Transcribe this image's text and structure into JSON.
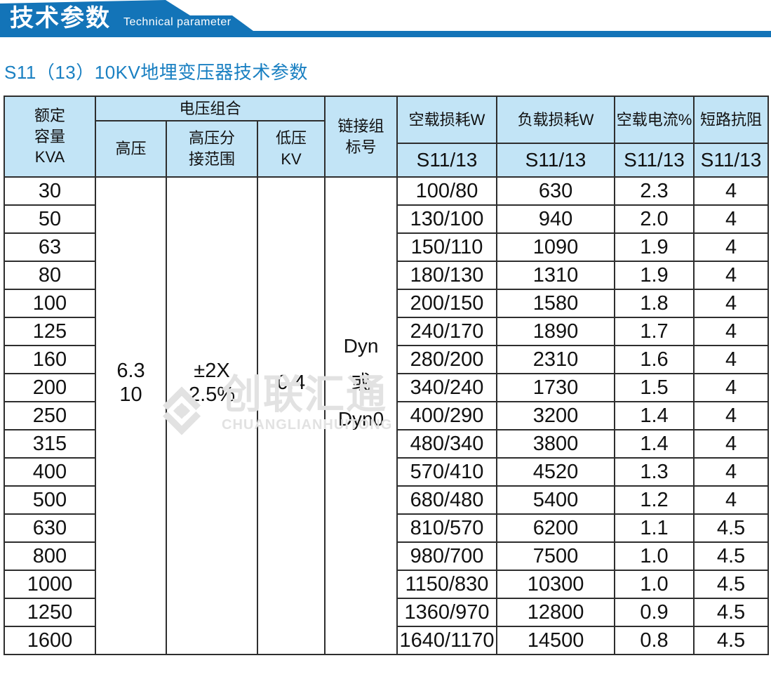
{
  "banner": {
    "title": "技术参数",
    "subtitle_en": "Technical parameter",
    "color": "#1374b8"
  },
  "page_title": "S11（13）10KV地埋变压器技术参数",
  "watermark": {
    "cn": "创联汇通",
    "en": "CHUANGLIANHUITONG"
  },
  "table": {
    "header": {
      "capacity": "额定\n容量\nKVA",
      "voltage_group": "电压组合",
      "hv": "高压",
      "tap": "高压分\n接范围",
      "lv": "低压\nKV",
      "vector": "链接组\n标号",
      "noload_loss": "空载损耗W",
      "load_loss": "负载损耗W",
      "noload_current": "空载电流%",
      "impedance": "短路抗阻",
      "sub_label": "S11/13"
    },
    "merged": {
      "hv": "6.3\n10",
      "tap": "±2X\n2.5%",
      "lv": "0.4",
      "vector": "Dyn\n或\nDyn0"
    },
    "rows": [
      {
        "kva": "30",
        "noload": "100/80",
        "load": "630",
        "current": "2.3",
        "impedance": "4"
      },
      {
        "kva": "50",
        "noload": "130/100",
        "load": "940",
        "current": "2.0",
        "impedance": "4"
      },
      {
        "kva": "63",
        "noload": "150/110",
        "load": "1090",
        "current": "1.9",
        "impedance": "4"
      },
      {
        "kva": "80",
        "noload": "180/130",
        "load": "1310",
        "current": "1.9",
        "impedance": "4"
      },
      {
        "kva": "100",
        "noload": "200/150",
        "load": "1580",
        "current": "1.8",
        "impedance": "4"
      },
      {
        "kva": "125",
        "noload": "240/170",
        "load": "1890",
        "current": "1.7",
        "impedance": "4"
      },
      {
        "kva": "160",
        "noload": "280/200",
        "load": "2310",
        "current": "1.6",
        "impedance": "4"
      },
      {
        "kva": "200",
        "noload": "340/240",
        "load": "1730",
        "current": "1.5",
        "impedance": "4"
      },
      {
        "kva": "250",
        "noload": "400/290",
        "load": "3200",
        "current": "1.4",
        "impedance": "4"
      },
      {
        "kva": "315",
        "noload": "480/340",
        "load": "3800",
        "current": "1.4",
        "impedance": "4"
      },
      {
        "kva": "400",
        "noload": "570/410",
        "load": "4520",
        "current": "1.3",
        "impedance": "4"
      },
      {
        "kva": "500",
        "noload": "680/480",
        "load": "5400",
        "current": "1.2",
        "impedance": "4"
      },
      {
        "kva": "630",
        "noload": "810/570",
        "load": "6200",
        "current": "1.1",
        "impedance": "4.5"
      },
      {
        "kva": "800",
        "noload": "980/700",
        "load": "7500",
        "current": "1.0",
        "impedance": "4.5"
      },
      {
        "kva": "1000",
        "noload": "1150/830",
        "load": "10300",
        "current": "1.0",
        "impedance": "4.5"
      },
      {
        "kva": "1250",
        "noload": "1360/970",
        "load": "12800",
        "current": "0.9",
        "impedance": "4.5"
      },
      {
        "kva": "1600",
        "noload": "1640/1170",
        "load": "14500",
        "current": "0.8",
        "impedance": "4.5"
      }
    ]
  }
}
